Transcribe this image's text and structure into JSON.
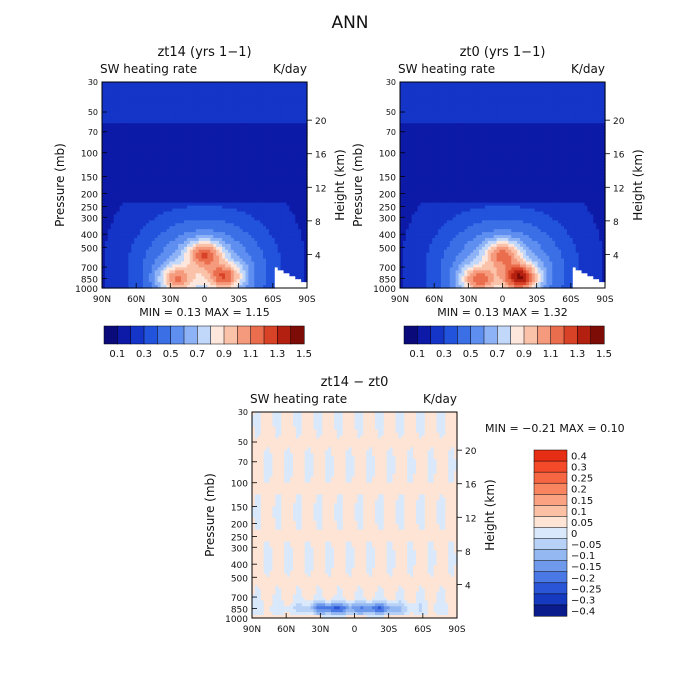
{
  "figure_title": "ANN",
  "chart_data": [
    {
      "type": "heatmap",
      "title": "zt14 (yrs 1−1)",
      "subtitle_left": "SW heating rate",
      "subtitle_right": "K/day",
      "xlabel": "",
      "ylabel": "Pressure (mb)",
      "ylabel_right": "Height (km)",
      "x_ticks": [
        "90N",
        "60N",
        "30N",
        "0",
        "30S",
        "60S",
        "90S"
      ],
      "x_values": [
        90,
        60,
        30,
        0,
        -30,
        -60,
        -90
      ],
      "y_ticks": [
        "30",
        "50",
        "70",
        "100",
        "150",
        "200",
        "250",
        "300",
        "400",
        "500",
        "700",
        "850",
        "1000"
      ],
      "y_values": [
        30,
        50,
        70,
        100,
        150,
        200,
        250,
        300,
        400,
        500,
        700,
        850,
        1000
      ],
      "y_right_ticks": [
        "20",
        "16",
        "12",
        "8",
        "4"
      ],
      "y_right_values": [
        20,
        16,
        12,
        8,
        4
      ],
      "stats": "MIN =    0.13   MAX =    1.15",
      "min": 0.13,
      "max": 1.15,
      "colorbar_labels": [
        "0.1",
        "0.3",
        "0.5",
        "0.7",
        "0.9",
        "1.1",
        "1.3",
        "1.5"
      ],
      "features": [
        {
          "lat": 0,
          "p": 560,
          "value": 1.1
        },
        {
          "lat": 25,
          "p": 860,
          "value": 1.05
        },
        {
          "lat": -18,
          "p": 830,
          "value": 1.1
        }
      ]
    },
    {
      "type": "heatmap",
      "title": "zt0 (yrs 1−1)",
      "subtitle_left": "SW heating rate",
      "subtitle_right": "K/day",
      "xlabel": "",
      "ylabel": "Pressure (mb)",
      "ylabel_right": "Height (km)",
      "x_ticks": [
        "90N",
        "60N",
        "30N",
        "0",
        "30S",
        "60S",
        "90S"
      ],
      "x_values": [
        90,
        60,
        30,
        0,
        -30,
        -60,
        -90
      ],
      "y_ticks": [
        "30",
        "50",
        "70",
        "100",
        "150",
        "200",
        "250",
        "300",
        "400",
        "500",
        "700",
        "850",
        "1000"
      ],
      "y_values": [
        30,
        50,
        70,
        100,
        150,
        200,
        250,
        300,
        400,
        500,
        700,
        850,
        1000
      ],
      "y_right_ticks": [
        "20",
        "16",
        "12",
        "8",
        "4"
      ],
      "y_right_values": [
        20,
        16,
        12,
        8,
        4
      ],
      "stats": "MIN =    0.13   MAX =    1.32",
      "min": 0.13,
      "max": 1.32,
      "colorbar_labels": [
        "0.1",
        "0.3",
        "0.5",
        "0.7",
        "0.9",
        "1.1",
        "1.3",
        "1.5"
      ],
      "features": [
        {
          "lat": 0,
          "p": 560,
          "value": 1.05
        },
        {
          "lat": 22,
          "p": 870,
          "value": 1.1
        },
        {
          "lat": -16,
          "p": 840,
          "value": 1.3
        }
      ]
    },
    {
      "type": "heatmap",
      "title": "zt14 − zt0",
      "subtitle_left": "SW heating rate",
      "subtitle_right": "K/day",
      "xlabel": "",
      "ylabel": "Pressure (mb)",
      "ylabel_right": "Height (km)",
      "x_ticks": [
        "90N",
        "60N",
        "30N",
        "0",
        "30S",
        "60S",
        "90S"
      ],
      "x_values": [
        90,
        60,
        30,
        0,
        -30,
        -60,
        -90
      ],
      "y_ticks": [
        "30",
        "50",
        "70",
        "100",
        "150",
        "200",
        "250",
        "300",
        "400",
        "500",
        "700",
        "850",
        "1000"
      ],
      "y_values": [
        30,
        50,
        70,
        100,
        150,
        200,
        250,
        300,
        400,
        500,
        700,
        850,
        1000
      ],
      "y_right_ticks": [
        "20",
        "16",
        "12",
        "8",
        "4"
      ],
      "y_right_values": [
        20,
        16,
        12,
        8,
        4
      ],
      "stats": "MIN =   −0.21   MAX =    0.10",
      "min": -0.21,
      "max": 0.1,
      "colorbar_labels": [
        "0.4",
        "0.3",
        "0.25",
        "0.2",
        "0.15",
        "0.1",
        "0.05",
        "0",
        "−0.05",
        "−0.1",
        "−0.15",
        "−0.2",
        "−0.25",
        "−0.3",
        "−0.4"
      ],
      "features": [
        {
          "lat": 20,
          "p": 850,
          "value": -0.21
        },
        {
          "lat": -20,
          "p": 850,
          "value": -0.18
        }
      ]
    }
  ],
  "colors": {
    "cmap_a": [
      "#0a0a7a",
      "#0d1aa8",
      "#1535c8",
      "#2253dc",
      "#3a6fe6",
      "#5e8ff0",
      "#8eb2f6",
      "#c2d8fb",
      "#fde6dc",
      "#fbc2aa",
      "#f59a7c",
      "#ea6e4e",
      "#d84226",
      "#b32010",
      "#7e0c06"
    ],
    "cmap_b": [
      "#e62e14",
      "#f44a2a",
      "#f66642",
      "#f98460",
      "#fba282",
      "#fcc0a4",
      "#fde4d4",
      "#d9e8fb",
      "#b8d2f7",
      "#94b8f2",
      "#6f9aec",
      "#4a78e4",
      "#2a55d6",
      "#153ac0",
      "#0a1c8c"
    ]
  }
}
